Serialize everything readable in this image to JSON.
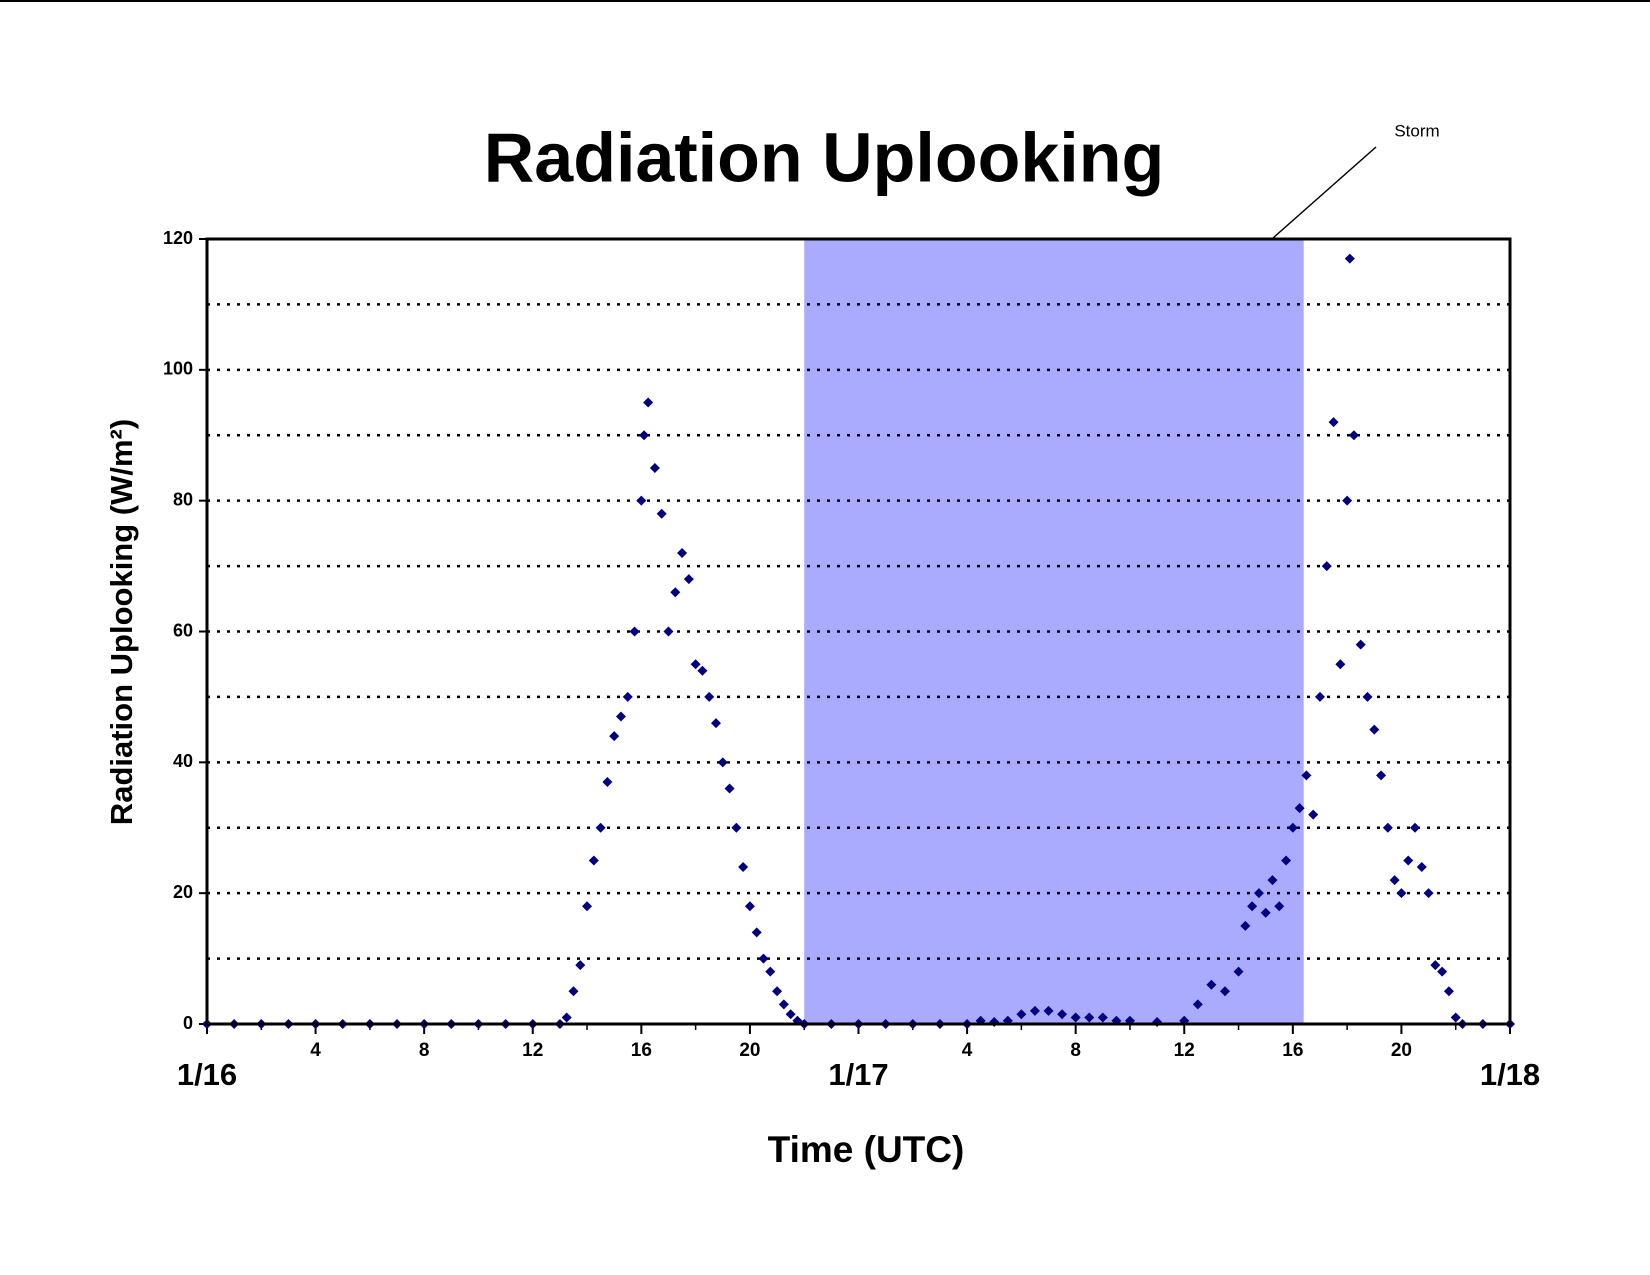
{
  "chart_data": {
    "type": "scatter",
    "title": "Radiation Uplooking",
    "x_label": "Time (UTC)",
    "y_label": "Radiation Uplooking (W/m²)",
    "color": "#000080",
    "x": [
      0,
      1,
      2,
      3,
      4,
      5,
      6,
      7,
      8,
      9,
      10,
      11,
      12,
      13,
      13.25,
      13.5,
      13.75,
      14,
      14.25,
      14.5,
      14.75,
      15,
      15.25,
      15.5,
      15.75,
      16,
      16.1,
      16.25,
      16.5,
      16.75,
      17,
      17.25,
      17.5,
      17.75,
      18,
      18.25,
      18.5,
      18.75,
      19,
      19.25,
      19.5,
      19.75,
      20,
      20.25,
      20.5,
      20.75,
      21,
      21.25,
      21.5,
      21.75,
      22,
      23,
      24,
      25,
      26,
      27,
      28,
      28.5,
      29,
      29.5,
      30,
      30.5,
      31,
      31.5,
      32,
      32.5,
      33,
      33.5,
      34,
      35,
      36,
      36.5,
      37,
      37.5,
      38,
      38.25,
      38.5,
      38.75,
      39,
      39.25,
      39.5,
      39.75,
      40,
      40.25,
      40.5,
      40.75,
      41,
      41.25,
      41.5,
      41.75,
      42,
      42.1,
      42.25,
      42.5,
      42.75,
      43,
      43.25,
      43.5,
      43.75,
      44,
      44.25,
      44.5,
      44.75,
      45,
      45.25,
      45.5,
      45.75,
      46,
      46.25,
      47,
      48
    ],
    "values": [
      0,
      0,
      0,
      0,
      0,
      0,
      0,
      0,
      0,
      0,
      0,
      0,
      0,
      0,
      1,
      5,
      9,
      18,
      25,
      30,
      37,
      44,
      47,
      50,
      60,
      80,
      90,
      95,
      85,
      78,
      60,
      66,
      72,
      68,
      55,
      54,
      50,
      46,
      40,
      36,
      30,
      24,
      18,
      14,
      10,
      8,
      5,
      3,
      1.5,
      0.5,
      0,
      0,
      0,
      0,
      0,
      0,
      0,
      0.5,
      0.3,
      0.5,
      1.5,
      2,
      2,
      1.5,
      1,
      1,
      1,
      0.5,
      0.5,
      0.3,
      0.5,
      3,
      6,
      5,
      8,
      15,
      18,
      20,
      17,
      22,
      18,
      25,
      30,
      33,
      38,
      32,
      50,
      70,
      92,
      55,
      80,
      117,
      90,
      58,
      50,
      45,
      38,
      30,
      22,
      20,
      25,
      30,
      24,
      20,
      9,
      8,
      5,
      1,
      0,
      0,
      0
    ],
    "xlim": [
      0,
      48
    ],
    "xticks": [
      {
        "value": 0,
        "label": "1/16"
      },
      4,
      8,
      12,
      16,
      20,
      {
        "value": 24,
        "label": "1/17"
      },
      {
        "value": 28,
        "label": "4"
      },
      {
        "value": 32,
        "label": "8"
      },
      {
        "value": 36,
        "label": "12"
      },
      {
        "value": 40,
        "label": "16"
      },
      {
        "value": 44,
        "label": "20"
      },
      {
        "value": 48,
        "label": "1/18"
      }
    ],
    "xminor_ticks": [
      2,
      6,
      10,
      14,
      18,
      22,
      26,
      30,
      34,
      38,
      42,
      46
    ],
    "ylim": [
      0,
      120
    ],
    "yticks": [
      0,
      20,
      40,
      60,
      80,
      100,
      120
    ],
    "grid_lines": [
      10,
      20,
      30,
      40,
      50,
      60,
      70,
      80,
      90,
      100,
      110
    ],
    "shaded_region": {
      "label": "Storm",
      "x": [
        22,
        40.4
      ],
      "color": "#aaaaff"
    }
  }
}
